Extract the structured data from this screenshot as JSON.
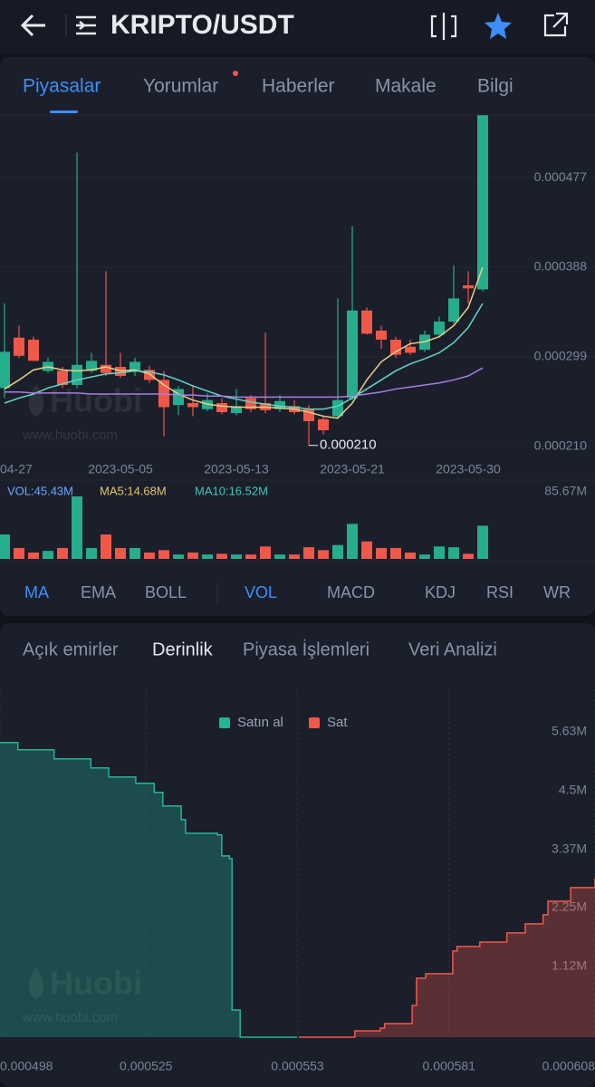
{
  "header": {
    "title": "KRIPTO/USDT"
  },
  "tabs": [
    "Piyasalar",
    "Yorumlar",
    "Haberler",
    "Makale",
    "Bilgi"
  ],
  "indicator_tabs": [
    "MA",
    "EMA",
    "BOLL",
    "VOL",
    "MACD",
    "KDJ",
    "RSI",
    "WR"
  ],
  "order_tabs": [
    "Açık emirler",
    "Derinlik",
    "Piyasa İşlemleri",
    "Veri Analizi"
  ],
  "watermark": {
    "brand": "Huobi",
    "url": "www.huobi.com"
  },
  "chart_data": [
    {
      "type": "candlestick",
      "categories": [
        "04-27",
        null,
        null,
        null,
        null,
        null,
        null,
        null,
        "2023-05-05",
        null,
        null,
        null,
        null,
        null,
        null,
        null,
        "2023-05-13",
        null,
        null,
        null,
        null,
        null,
        null,
        null,
        "2023-05-21",
        null,
        null,
        null,
        null,
        null,
        null,
        null,
        "2023-05-30",
        null
      ],
      "open": [
        0.000268,
        0.000318,
        0.000316,
        0.000285,
        0.000285,
        0.000271,
        0.000285,
        0.000291,
        0.000289,
        0.000285,
        0.000286,
        0.000276,
        0.000251,
        0.000253,
        0.000247,
        0.000253,
        0.000243,
        0.000258,
        0.000253,
        0.000247,
        0.00025,
        0.000247,
        0.000237,
        0.00024,
        0.000258,
        0.000345,
        0.000325,
        0.000316,
        0.000309,
        0.000306,
        0.000321,
        0.000334,
        0.00037,
        0.000366
      ],
      "high": [
        0.000352,
        0.00033,
        0.000319,
        0.000298,
        0.000289,
        0.000502,
        0.000303,
        0.000384,
        0.000303,
        0.000298,
        0.00029,
        0.000285,
        0.00027,
        0.000271,
        0.000263,
        0.000258,
        0.000267,
        0.000261,
        0.000323,
        0.000261,
        0.000256,
        0.000251,
        0.000241,
        0.000357,
        0.000429,
        0.000348,
        0.00033,
        0.000319,
        0.000316,
        0.000325,
        0.000339,
        0.00039,
        0.000384,
        0.000539
      ],
      "low": [
        0.000258,
        0.000298,
        0.000295,
        0.000283,
        0.000268,
        0.000268,
        0.000283,
        0.00028,
        0.000278,
        0.00028,
        0.000273,
        0.00022,
        0.000241,
        0.00024,
        0.000245,
        0.000242,
        0.000241,
        0.000244,
        0.000243,
        0.000244,
        0.000242,
        0.000211,
        0.000222,
        0.000238,
        0.000256,
        0.000321,
        0.000307,
        0.000298,
        0.000301,
        0.000304,
        0.000319,
        0.000332,
        0.000352,
        0.000364
      ],
      "close": [
        0.000304,
        0.0003,
        0.000295,
        0.000294,
        0.000271,
        0.000291,
        0.000295,
        0.000283,
        0.00028,
        0.000294,
        0.000276,
        0.000249,
        0.000267,
        0.000249,
        0.000256,
        0.000244,
        0.00025,
        0.000247,
        0.000246,
        0.000255,
        0.000244,
        0.000235,
        0.000226,
        0.000256,
        0.000345,
        0.000322,
        0.000316,
        0.000301,
        0.000303,
        0.000321,
        0.000334,
        0.000357,
        0.000367,
        0.000539
      ],
      "up_color": "#26ad8c",
      "down_color": "#f0584a",
      "lines": [
        {
          "color": "#e8d08a",
          "values": [
            0.000267,
            0.000276,
            0.000286,
            0.000289,
            0.000286,
            0.000285,
            0.000286,
            0.000289,
            0.000285,
            0.000286,
            0.000282,
            0.000271,
            0.000262,
            0.000256,
            0.000252,
            0.00025,
            0.000249,
            0.000249,
            0.000249,
            0.000248,
            0.000247,
            0.000244,
            0.00024,
            0.000238,
            0.000253,
            0.000276,
            0.000294,
            0.000304,
            0.000312,
            0.000314,
            0.000319,
            0.00033,
            0.000348,
            0.000388
          ]
        },
        {
          "color": "#63d6c6",
          "values": [
            0.000253,
            0.000258,
            0.000262,
            0.000268,
            0.000272,
            0.000276,
            0.000279,
            0.000282,
            0.000283,
            0.000285,
            0.000284,
            0.000281,
            0.000276,
            0.00027,
            0.000265,
            0.00026,
            0.000257,
            0.000254,
            0.000252,
            0.00025,
            0.000249,
            0.000247,
            0.000247,
            0.00025,
            0.000258,
            0.000267,
            0.000276,
            0.000285,
            0.000292,
            0.000297,
            0.000303,
            0.000313,
            0.000328,
            0.000352
          ]
        },
        {
          "color": "#a77ee0",
          "values": [
            0.000264,
            0.000264,
            0.000263,
            0.000263,
            0.000263,
            0.000263,
            0.000262,
            0.000262,
            0.000262,
            0.000262,
            0.000262,
            0.000262,
            0.000261,
            0.000261,
            0.00026,
            0.00026,
            0.000259,
            0.000259,
            0.000259,
            0.000259,
            0.000259,
            0.000259,
            0.000259,
            0.000259,
            0.00026,
            0.000262,
            0.000264,
            0.000267,
            0.000269,
            0.000271,
            0.000273,
            0.000276,
            0.00028,
            0.000288
          ]
        }
      ],
      "annotation": "0.000210",
      "ylim": [
        0.000199,
        0.000541
      ],
      "yticks": [
        {
          "value": 0.00021,
          "label": "0.000210"
        },
        0.000299,
        0.000388,
        0.000477
      ]
    },
    {
      "type": "bar",
      "legend": [
        "VOL:45.43M",
        "MA5:14.68M",
        "MA10:16.52M"
      ],
      "legend_colors": [
        "#6aa7ff",
        "#e2c56b",
        "#3fc9b0"
      ],
      "values": [
        33500000,
        15000000,
        8700000,
        11000000,
        15000000,
        85670000,
        15000000,
        33500000,
        15000000,
        15000000,
        8700000,
        12000000,
        6000000,
        8700000,
        6000000,
        7000000,
        6000000,
        6000000,
        17000000,
        6000000,
        6000000,
        16000000,
        12000000,
        19000000,
        48000000,
        24000000,
        15000000,
        15000000,
        8700000,
        6000000,
        17000000,
        16000000,
        7000000,
        45430000
      ],
      "ylim": [
        0,
        85670000
      ],
      "yticks": [
        {
          "value": 85670000,
          "label": "85.67M"
        }
      ]
    },
    {
      "type": "area",
      "series": [
        {
          "name": "Satın al",
          "color": "#22b596",
          "x": [
            0.000498,
            0.0005013,
            0.000508,
            0.0005148,
            0.0005181,
            0.0005231,
            0.0005265,
            0.0005281,
            0.0005315,
            0.0005323,
            0.0005382,
            0.000539,
            0.0005404,
            0.0005409,
            0.0005424,
            0.0005529
          ],
          "values": [
            5669000,
            5529000,
            5355000,
            5180000,
            5006000,
            4884000,
            4709000,
            4448000,
            4186000,
            3924000,
            3890000,
            3488000,
            3436000,
            523000,
            0,
            0
          ]
        },
        {
          "name": "Sat",
          "color": "#f0584a",
          "x": [
            0.0005532,
            0.0005633,
            0.0005636,
            0.0005683,
            0.0005691,
            0.0005742,
            0.000575,
            0.0005767,
            0.0005817,
            0.0005825,
            0.0005867,
            0.0005917,
            0.0005951,
            0.0005984,
            0.0005993,
            0.0006035,
            0.000608
          ],
          "values": [
            0,
            0,
            122000,
            174000,
            262000,
            610000,
            1134000,
            1221000,
            1657000,
            1744000,
            1831000,
            2006000,
            2180000,
            2355000,
            2616000,
            2878000,
            3052000
          ]
        }
      ],
      "xlim": [
        0.000498,
        0.000608
      ],
      "xticks": [
        0.000498,
        0.000525,
        0.000553,
        0.000581,
        0.000608
      ],
      "ylim": [
        0,
        6710000
      ],
      "yticks": [
        {
          "value": 1120000,
          "label": "1.12M"
        },
        {
          "value": 2250000,
          "label": "2.25M"
        },
        {
          "value": 3370000,
          "label": "3.37M"
        },
        {
          "value": 4500000,
          "label": "4.5M"
        },
        {
          "value": 5630000,
          "label": "5.63M"
        }
      ]
    }
  ]
}
